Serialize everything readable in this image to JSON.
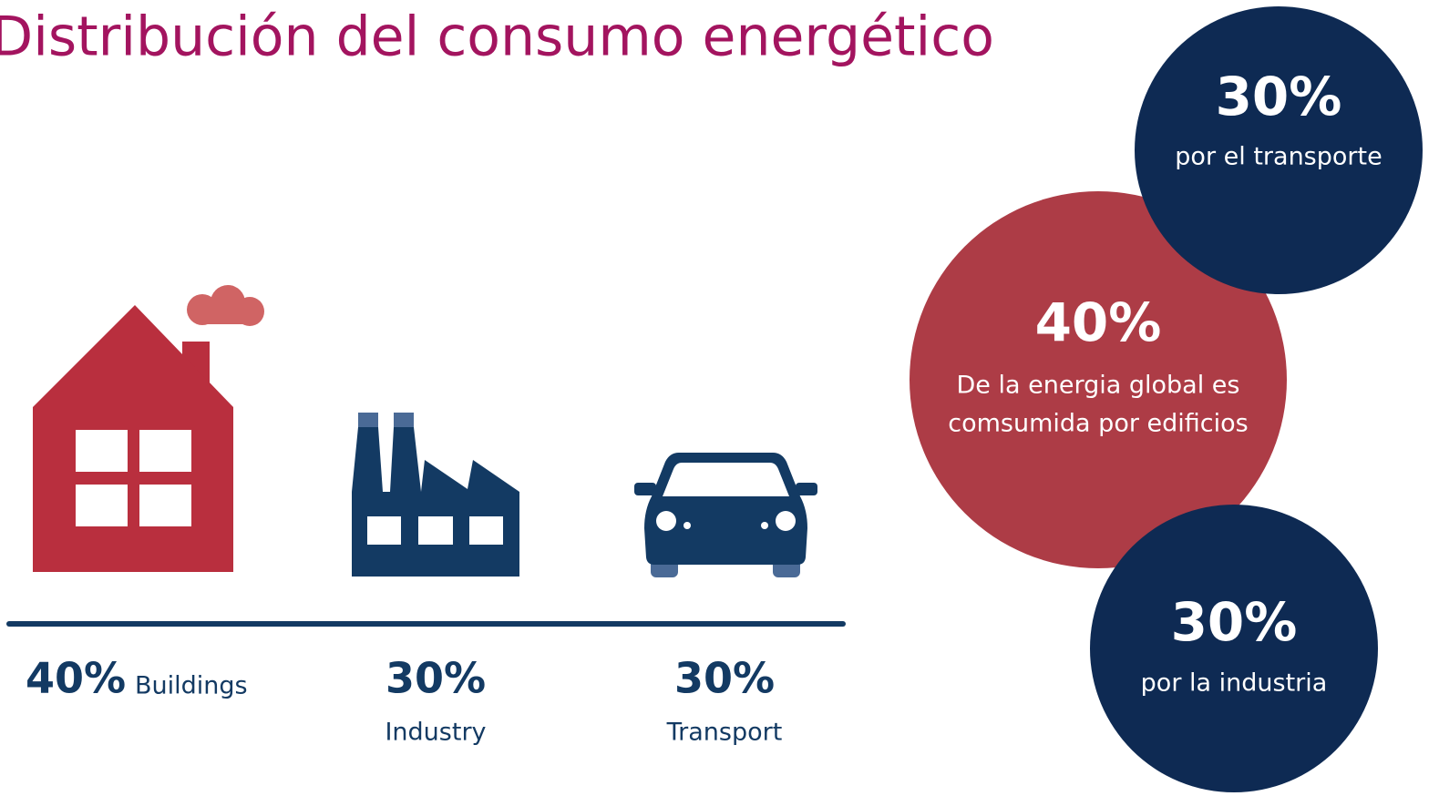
{
  "title": "Distribución del consumo energético",
  "sectors": [
    {
      "percent": "40%",
      "label": "Buildings"
    },
    {
      "percent": "30%",
      "label": "Industry"
    },
    {
      "percent": "30%",
      "label": "Transport"
    }
  ],
  "bubbles": [
    {
      "percent": "30%",
      "lines": [
        "por el transporte"
      ]
    },
    {
      "percent": "40%",
      "lines": [
        "De la energia global es",
        "comsumida por edificios"
      ]
    },
    {
      "percent": "30%",
      "lines": [
        "por la industria"
      ]
    }
  ]
}
